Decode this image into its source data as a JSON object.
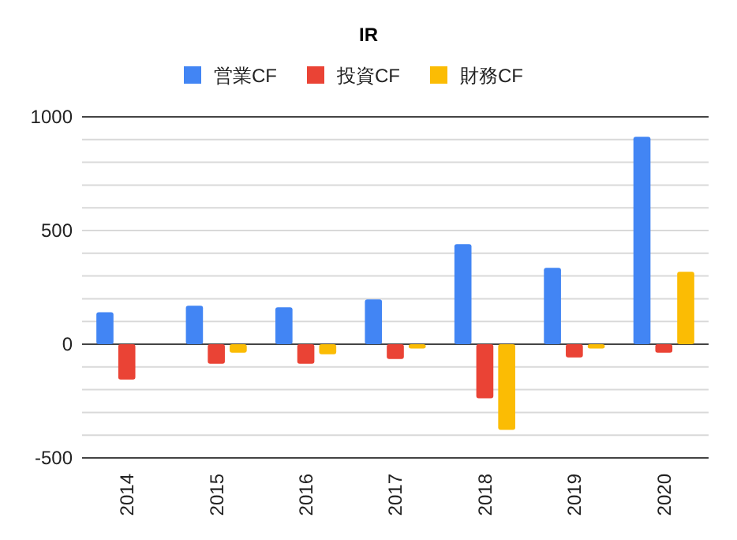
{
  "chart_data": {
    "type": "bar",
    "title": "IR",
    "categories": [
      "2014",
      "2015",
      "2016",
      "2017",
      "2018",
      "2019",
      "2020"
    ],
    "series": [
      {
        "name": "営業CF",
        "color": "#4285f4",
        "values": [
          141,
          169,
          162,
          197,
          440,
          336,
          912
        ]
      },
      {
        "name": "投資CF",
        "color": "#ea4335",
        "values": [
          -155,
          -86,
          -86,
          -65,
          -238,
          -58,
          -37
        ]
      },
      {
        "name": "財務CF",
        "color": "#fbbc04",
        "values": [
          0,
          -37,
          -44,
          -19,
          -377,
          -19,
          319
        ]
      }
    ],
    "ylim": [
      -500,
      1000
    ],
    "yticks": [
      -500,
      {
        "value": -400,
        "label": null
      },
      {
        "value": -300,
        "label": null
      },
      {
        "value": -200,
        "label": null
      },
      {
        "value": -100,
        "label": null
      },
      0,
      {
        "value": 100,
        "label": null
      },
      {
        "value": 200,
        "label": null
      },
      {
        "value": 300,
        "label": null
      },
      {
        "value": 400,
        "label": null
      },
      500,
      {
        "value": 600,
        "label": null
      },
      {
        "value": 700,
        "label": null
      },
      {
        "value": 800,
        "label": null
      },
      {
        "value": 900,
        "label": null
      },
      1000
    ],
    "grid": true,
    "legend": "top"
  }
}
